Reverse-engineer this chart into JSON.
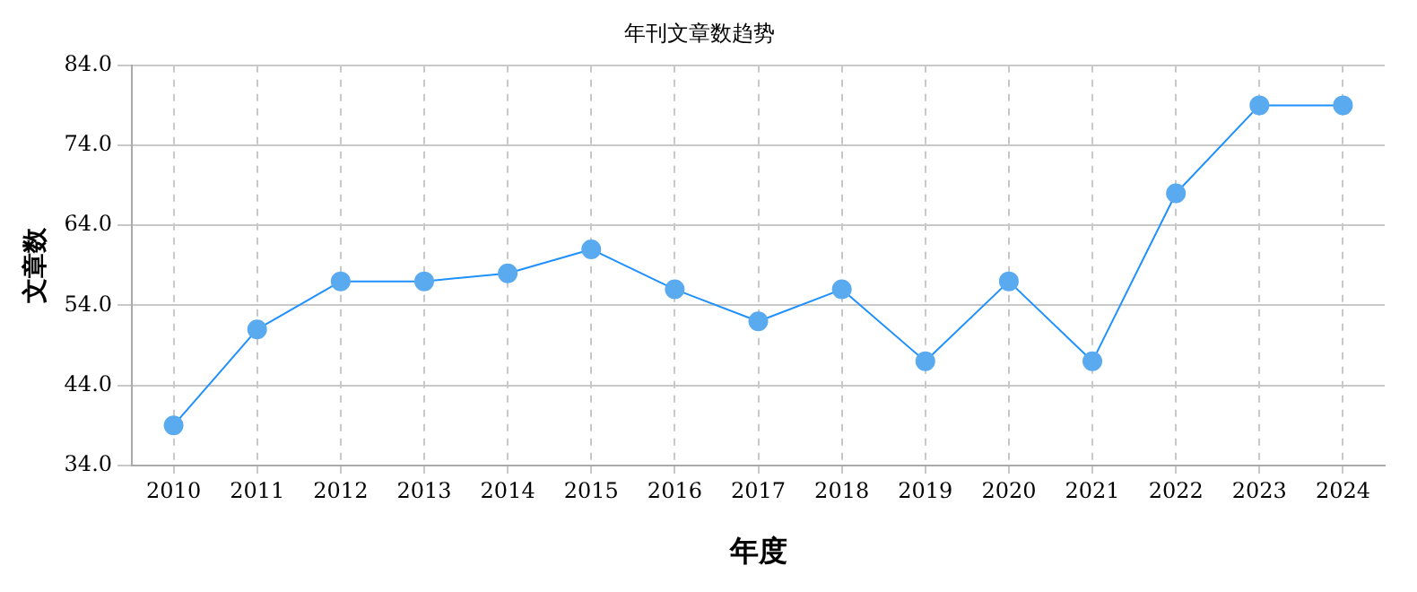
{
  "chart_data": {
    "type": "line",
    "title": "年刊文章数趋势",
    "xlabel": "年度",
    "ylabel": "文章数",
    "categories": [
      "2010",
      "2011",
      "2012",
      "2013",
      "2014",
      "2015",
      "2016",
      "2017",
      "2018",
      "2019",
      "2020",
      "2021",
      "2022",
      "2023",
      "2024"
    ],
    "series": [
      {
        "color": "#1e90ff",
        "values": [
          39,
          51,
          57,
          57,
          58,
          61,
          56,
          52,
          56,
          47,
          57,
          47,
          68,
          79,
          79
        ]
      }
    ],
    "ylim": [
      34,
      84
    ],
    "yticks": [
      {
        "value": 34,
        "label": "34.0"
      },
      {
        "value": 44,
        "label": "44.0"
      },
      {
        "value": 54,
        "label": "54.0"
      },
      {
        "value": 64,
        "label": "64.0"
      },
      {
        "value": 74,
        "label": "74.0"
      },
      {
        "value": 84,
        "label": "84.0"
      }
    ],
    "grid": true,
    "marker": "circle",
    "legend": false
  }
}
